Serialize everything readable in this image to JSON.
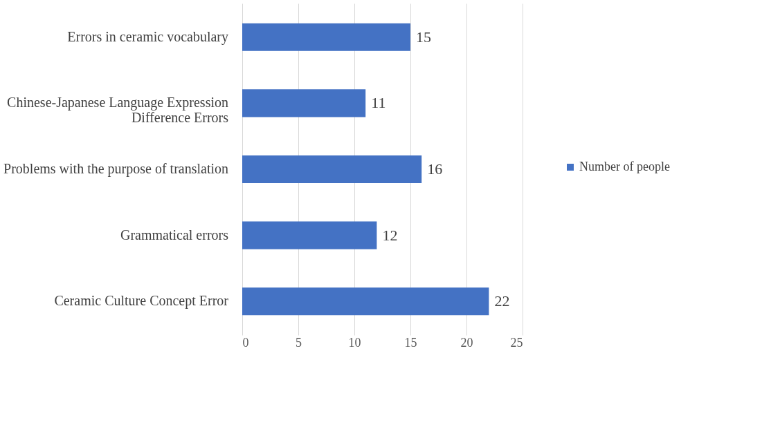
{
  "chart_data": {
    "type": "bar",
    "orientation": "horizontal",
    "categories": [
      "Errors in ceramic vocabulary",
      "Chinese-Japanese Language Expression Difference Errors",
      "Problems with the purpose of translation",
      "Grammatical errors",
      "Ceramic Culture Concept Error"
    ],
    "series": [
      {
        "name": "Number of people",
        "color": "#4472c4",
        "values": [
          15,
          11,
          16,
          12,
          22
        ]
      }
    ],
    "xlim": [
      0,
      25
    ],
    "xticks": [
      0,
      5,
      10,
      15,
      20,
      25
    ],
    "grid": "x",
    "legend": "right",
    "data_labels": true
  }
}
